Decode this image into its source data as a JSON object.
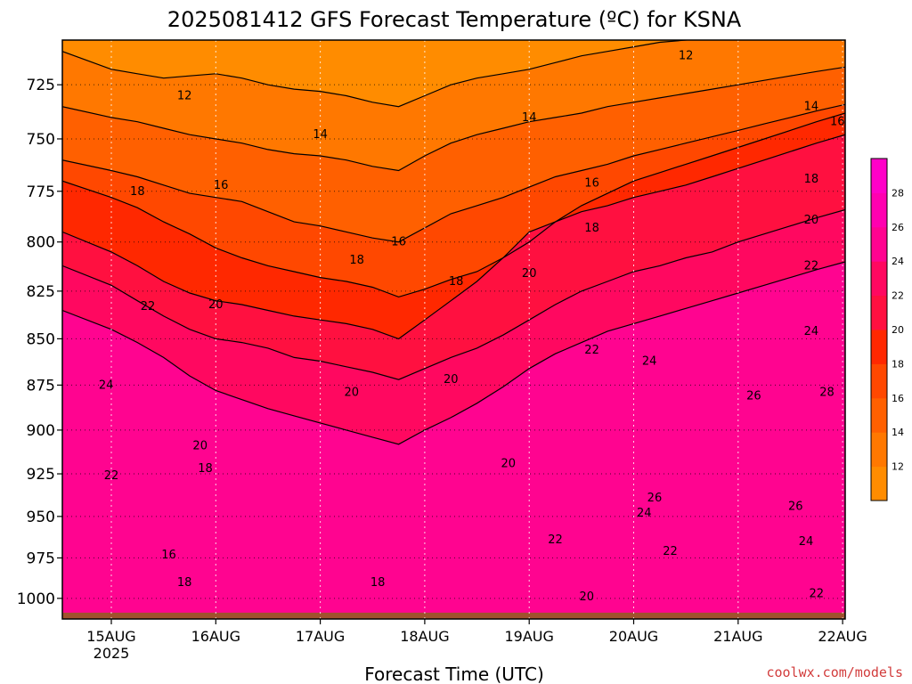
{
  "title": "2025081412 GFS Forecast Temperature (ºC) for KSNA",
  "credit": "coolwx.com/models",
  "chart_data": {
    "type": "heatmap",
    "title": "2025081412 GFS Forecast Temperature (ºC) for KSNA",
    "xlabel": "Forecast Time (UTC)",
    "ylabel": "",
    "x_ticks": [
      "15AUG",
      "16AUG",
      "17AUG",
      "18AUG",
      "19AUG",
      "20AUG",
      "21AUG",
      "22AUG"
    ],
    "x_tick_sub": "2025",
    "y_ticks": [
      725,
      750,
      775,
      800,
      825,
      850,
      875,
      900,
      925,
      950,
      975,
      1000
    ],
    "ylim": [
      1013,
      705
    ],
    "y_scale": "log-pressure",
    "grid": true,
    "colorbar": {
      "labels": [
        12,
        14,
        16,
        18,
        20,
        22,
        24,
        26,
        28
      ],
      "colors": [
        "#ff8c00",
        "#ff7800",
        "#ff6000",
        "#ff4800",
        "#ff2800",
        "#ff1040",
        "#ff0860",
        "#ff0490",
        "#ff00b0",
        "#ff00c8"
      ]
    },
    "x_times": [
      14.75,
      15,
      15.25,
      15.5,
      15.75,
      16,
      16.25,
      16.5,
      16.75,
      17,
      17.25,
      17.5,
      17.75,
      18,
      18.25,
      18.5,
      18.75,
      19,
      19.25,
      19.5,
      19.75,
      20,
      20.25,
      20.5,
      20.75,
      21,
      21.25,
      21.5,
      21.75,
      22
    ],
    "isotherm_heights_hpa": {
      "12": [
        710,
        718,
        720,
        722,
        721,
        720,
        722,
        725,
        727,
        728,
        730,
        733,
        735,
        730,
        725,
        722,
        720,
        718,
        715,
        712,
        710,
        708,
        706,
        705,
        704,
        703,
        702,
        702,
        701,
        700
      ],
      "14": [
        735,
        740,
        742,
        745,
        748,
        750,
        752,
        755,
        757,
        758,
        760,
        763,
        765,
        758,
        752,
        748,
        745,
        742,
        740,
        738,
        735,
        733,
        731,
        729,
        727,
        725,
        723,
        721,
        719,
        717
      ],
      "16": [
        760,
        765,
        768,
        772,
        776,
        778,
        780,
        785,
        790,
        792,
        795,
        798,
        800,
        793,
        786,
        782,
        778,
        773,
        768,
        765,
        762,
        758,
        755,
        752,
        749,
        746,
        743,
        740,
        737,
        734
      ],
      "18": [
        770,
        778,
        783,
        790,
        796,
        803,
        808,
        812,
        815,
        818,
        820,
        823,
        828,
        824,
        819,
        815,
        808,
        800,
        790,
        782,
        776,
        770,
        766,
        762,
        758,
        754,
        750,
        746,
        742,
        738
      ],
      "20": [
        795,
        805,
        812,
        820,
        826,
        830,
        832,
        835,
        838,
        840,
        842,
        845,
        850,
        840,
        830,
        820,
        808,
        795,
        790,
        785,
        782,
        778,
        775,
        772,
        768,
        764,
        760,
        756,
        752,
        748
      ],
      "22": [
        812,
        822,
        830,
        838,
        845,
        850,
        852,
        855,
        860,
        862,
        865,
        868,
        872,
        866,
        860,
        855,
        848,
        840,
        832,
        825,
        820,
        815,
        812,
        808,
        805,
        800,
        796,
        792,
        788,
        784
      ],
      "24": [
        835,
        845,
        852,
        860,
        870,
        878,
        883,
        888,
        892,
        896,
        900,
        904,
        908,
        900,
        893,
        885,
        876,
        866,
        858,
        852,
        846,
        842,
        838,
        834,
        830,
        826,
        822,
        818,
        814,
        810
      ]
    },
    "contour_labels": [
      {
        "text": "12",
        "x": 15.7,
        "y": 730
      },
      {
        "text": "12",
        "x": 20.5,
        "y": 712
      },
      {
        "text": "14",
        "x": 17.0,
        "y": 748
      },
      {
        "text": "14",
        "x": 19.0,
        "y": 740
      },
      {
        "text": "14",
        "x": 21.7,
        "y": 735
      },
      {
        "text": "16",
        "x": 16.05,
        "y": 772
      },
      {
        "text": "16",
        "x": 17.75,
        "y": 800
      },
      {
        "text": "16",
        "x": 19.6,
        "y": 771
      },
      {
        "text": "16",
        "x": 21.95,
        "y": 742
      },
      {
        "text": "18",
        "x": 15.25,
        "y": 775
      },
      {
        "text": "18",
        "x": 17.35,
        "y": 809
      },
      {
        "text": "18",
        "x": 18.3,
        "y": 820
      },
      {
        "text": "18",
        "x": 19.6,
        "y": 793
      },
      {
        "text": "18",
        "x": 21.7,
        "y": 769
      },
      {
        "text": "20",
        "x": 16.0,
        "y": 832
      },
      {
        "text": "20",
        "x": 19.0,
        "y": 816
      },
      {
        "text": "20",
        "x": 21.7,
        "y": 789
      },
      {
        "text": "22",
        "x": 15.35,
        "y": 833
      },
      {
        "text": "22",
        "x": 21.7,
        "y": 812
      },
      {
        "text": "24",
        "x": 14.95,
        "y": 875
      },
      {
        "text": "24",
        "x": 21.7,
        "y": 846
      },
      {
        "text": "20",
        "x": 17.3,
        "y": 879
      },
      {
        "text": "20",
        "x": 18.25,
        "y": 872
      },
      {
        "text": "22",
        "x": 19.6,
        "y": 856
      },
      {
        "text": "24",
        "x": 20.15,
        "y": 862
      },
      {
        "text": "26",
        "x": 21.15,
        "y": 881
      },
      {
        "text": "28",
        "x": 21.85,
        "y": 879
      },
      {
        "text": "20",
        "x": 15.85,
        "y": 909
      },
      {
        "text": "18",
        "x": 15.9,
        "y": 922
      },
      {
        "text": "22",
        "x": 15.0,
        "y": 926
      },
      {
        "text": "20",
        "x": 18.8,
        "y": 919
      },
      {
        "text": "26",
        "x": 20.2,
        "y": 939
      },
      {
        "text": "26",
        "x": 21.55,
        "y": 944
      },
      {
        "text": "22",
        "x": 19.25,
        "y": 964
      },
      {
        "text": "24",
        "x": 20.1,
        "y": 948
      },
      {
        "text": "16",
        "x": 15.55,
        "y": 973
      },
      {
        "text": "22",
        "x": 20.35,
        "y": 971
      },
      {
        "text": "24",
        "x": 21.65,
        "y": 965
      },
      {
        "text": "18",
        "x": 15.7,
        "y": 990
      },
      {
        "text": "18",
        "x": 17.55,
        "y": 990
      },
      {
        "text": "20",
        "x": 19.55,
        "y": 999
      },
      {
        "text": "22",
        "x": 21.75,
        "y": 997
      }
    ]
  }
}
